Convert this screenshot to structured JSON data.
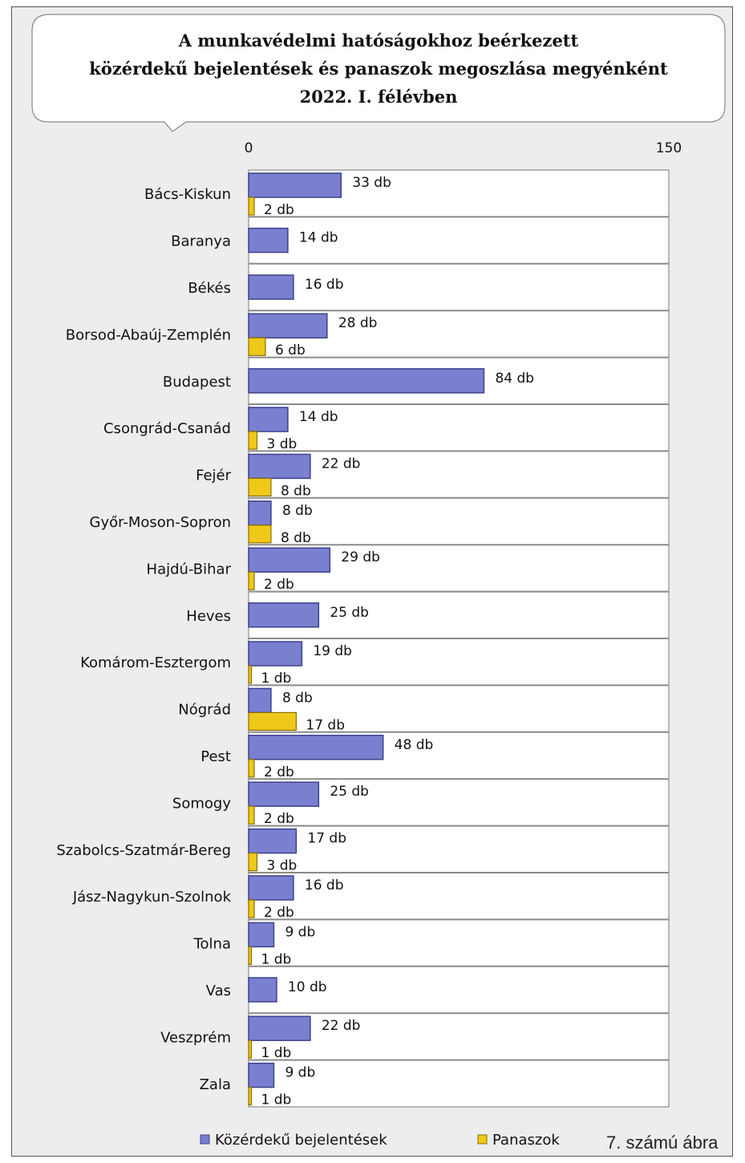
{
  "figure_label": "7. számú ábra",
  "colors": {
    "bejelentesek": "#7b7fd0",
    "bejelentesek_stroke": "#3d418a",
    "panaszok": "#f0c81a",
    "panaszok_stroke": "#8a7000",
    "background": "#ededed",
    "plot_background": "#ffffff"
  },
  "chart_data": {
    "type": "bar",
    "orientation": "horizontal",
    "title_lines": [
      "A munkavédelmi hatóságokhoz beérkezett",
      "közérdekű bejelentések és panaszok megoszlása megyénként",
      "2022. I. félévben"
    ],
    "xlim": [
      0,
      150
    ],
    "ticks": [
      "0",
      "150"
    ],
    "value_suffix": " db",
    "legend_position": "bottom",
    "categories": [
      "Bács-Kiskun",
      "Baranya",
      "Békés",
      "Borsod-Abaúj-Zemplén",
      "Budapest",
      "Csongrád-Csanád",
      "Fejér",
      "Győr-Moson-Sopron",
      "Hajdú-Bihar",
      "Heves",
      "Komárom-Esztergom",
      "Nógrád",
      "Pest",
      "Somogy",
      "Szabolcs-Szatmár-Bereg",
      "Jász-Nagykun-Szolnok",
      "Tolna",
      "Vas",
      "Veszprém",
      "Zala"
    ],
    "series": [
      {
        "name": "Közérdekű bejelentések",
        "values": [
          33,
          14,
          16,
          28,
          84,
          14,
          22,
          8,
          29,
          25,
          19,
          8,
          48,
          25,
          17,
          16,
          9,
          10,
          22,
          9
        ]
      },
      {
        "name": "Panaszok",
        "values": [
          2,
          null,
          null,
          6,
          null,
          3,
          8,
          8,
          2,
          null,
          1,
          17,
          2,
          2,
          3,
          2,
          1,
          null,
          1,
          1
        ]
      }
    ]
  }
}
